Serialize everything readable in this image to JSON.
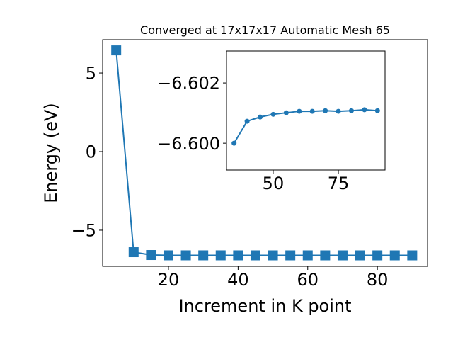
{
  "chart_data": [
    {
      "type": "line",
      "title": "Converged at 17x17x17 Automatic Mesh 65",
      "x_label": "Increment in K point",
      "y_label": "Energy (eV)",
      "x": [
        5,
        10,
        15,
        20,
        25,
        30,
        35,
        40,
        45,
        50,
        55,
        60,
        65,
        70,
        75,
        80,
        85,
        90
      ],
      "series": [
        {
          "color": "#1f77b4",
          "marker": "square",
          "values": [
            6.44,
            -6.4,
            -6.58,
            -6.6,
            -6.6,
            -6.6,
            -6.6,
            -6.60073,
            -6.60087,
            -6.60096,
            -6.60101,
            -6.60106,
            -6.60106,
            -6.60108,
            -6.60106,
            -6.60108,
            -6.60111,
            -6.60108
          ]
        }
      ],
      "xlim": [
        1.1,
        94.4
      ],
      "ylim": [
        -7.3,
        7.12
      ],
      "xticks": [
        20,
        40,
        60,
        80
      ],
      "yticks": [
        {
          "value": -5,
          "label": "−5"
        },
        0,
        5
      ]
    },
    {
      "type": "line",
      "x": [
        35,
        40,
        45,
        50,
        55,
        60,
        65,
        70,
        75,
        80,
        85,
        90
      ],
      "series": [
        {
          "color": "#1f77b4",
          "marker": "circle",
          "values": [
            -6.6,
            -6.60073,
            -6.60087,
            -6.60096,
            -6.60101,
            -6.60106,
            -6.60106,
            -6.60108,
            -6.60106,
            -6.60108,
            -6.60111,
            -6.60108
          ]
        }
      ],
      "xlim": [
        32.1,
        92.9
      ],
      "ylim": [
        -6.59911,
        -6.60306
      ],
      "xticks": [
        50,
        75
      ],
      "yticks": [
        {
          "value": -6.602,
          "label": "−6.602"
        },
        {
          "value": -6.6,
          "label": "−6.600"
        }
      ]
    }
  ]
}
